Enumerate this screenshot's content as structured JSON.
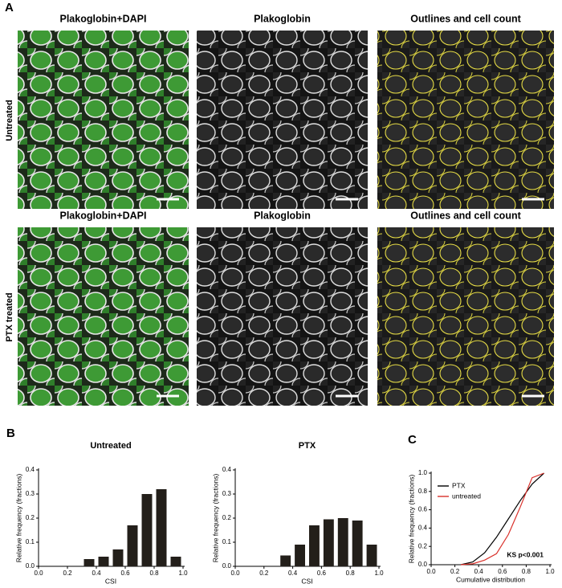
{
  "panel_labels": [
    "A",
    "B",
    "C"
  ],
  "row_labels": [
    "Untreated",
    "PTX treated"
  ],
  "image_titles": [
    [
      "Plakoglobin+DAPI",
      "Plakoglobin",
      "Outlines and cell count"
    ],
    [
      "Plakoglobin+DAPI",
      "Plakoglobin",
      "Outlines and cell count"
    ]
  ],
  "chart_data": [
    {
      "type": "histogram",
      "title": "Untreated",
      "xlabel": "CSI",
      "ylabel": "Relative frequency (fractions)",
      "color": "#231f1a",
      "bins": [
        0.0,
        0.1,
        0.2,
        0.3,
        0.4,
        0.5,
        0.6,
        0.7,
        0.8,
        0.9,
        1.0
      ],
      "values": [
        0,
        0,
        0,
        0.03,
        0.04,
        0.07,
        0.17,
        0.3,
        0.32,
        0.04
      ],
      "xlim": [
        0,
        1
      ],
      "ylim": [
        0,
        0.4
      ],
      "xticks": [
        {
          "value": 0,
          "label": "0.0"
        },
        {
          "value": 0.2,
          "label": "0.2"
        },
        {
          "value": 0.4,
          "label": "0.4"
        },
        {
          "value": 0.6,
          "label": "0.6"
        },
        {
          "value": 0.8,
          "label": "0.8"
        },
        {
          "value": 1,
          "label": "1.0"
        }
      ],
      "yticks": [
        {
          "value": 0,
          "label": "0.0"
        },
        0.1,
        0.2,
        0.3,
        0.4
      ]
    },
    {
      "type": "histogram",
      "title": "PTX",
      "xlabel": "CSI",
      "ylabel": "Relative frequency (fractions)",
      "color": "#231f1a",
      "bins": [
        0.0,
        0.1,
        0.2,
        0.3,
        0.4,
        0.5,
        0.6,
        0.7,
        0.8,
        0.9,
        1.0
      ],
      "values": [
        0,
        0,
        0,
        0.045,
        0.09,
        0.17,
        0.195,
        0.2,
        0.19,
        0.09
      ],
      "xlim": [
        0,
        1
      ],
      "ylim": [
        0,
        0.4
      ],
      "xticks": [
        {
          "value": 0,
          "label": "0.0"
        },
        {
          "value": 0.2,
          "label": "0.2"
        },
        {
          "value": 0.4,
          "label": "0.4"
        },
        {
          "value": 0.6,
          "label": "0.6"
        },
        {
          "value": 0.8,
          "label": "0.8"
        },
        {
          "value": 1,
          "label": "1.0"
        }
      ],
      "yticks": [
        {
          "value": 0,
          "label": "0.0"
        },
        0.1,
        0.2,
        0.3,
        0.4
      ]
    },
    {
      "type": "line",
      "xlabel": "Cumulative distribution",
      "ylabel": "Relative frequency (fractions)",
      "annotation": "KS p<0.001",
      "legend": "upper-left",
      "x": [
        0.25,
        0.35,
        0.45,
        0.55,
        0.65,
        0.75,
        0.85,
        0.95
      ],
      "series": [
        {
          "name": "PTX",
          "color": "#000000",
          "values": [
            0,
            0.03,
            0.13,
            0.3,
            0.5,
            0.7,
            0.88,
            1.0
          ]
        },
        {
          "name": "untreated",
          "color": "#d9302a",
          "values": [
            0,
            0.01,
            0.05,
            0.12,
            0.33,
            0.63,
            0.95,
            1.0
          ]
        }
      ],
      "xlim": [
        0,
        1
      ],
      "ylim": [
        0,
        1
      ],
      "xticks": [
        {
          "value": 0,
          "label": "0.0"
        },
        {
          "value": 0.2,
          "label": "0.2"
        },
        {
          "value": 0.4,
          "label": "0.4"
        },
        {
          "value": 0.6,
          "label": "0.6"
        },
        {
          "value": 0.8,
          "label": "0.8"
        },
        {
          "value": 1,
          "label": "1.0"
        }
      ],
      "yticks": [
        {
          "value": 0,
          "label": "0.0"
        },
        0.2,
        0.4,
        0.6,
        0.8,
        {
          "value": 1,
          "label": "1.0"
        }
      ]
    }
  ]
}
